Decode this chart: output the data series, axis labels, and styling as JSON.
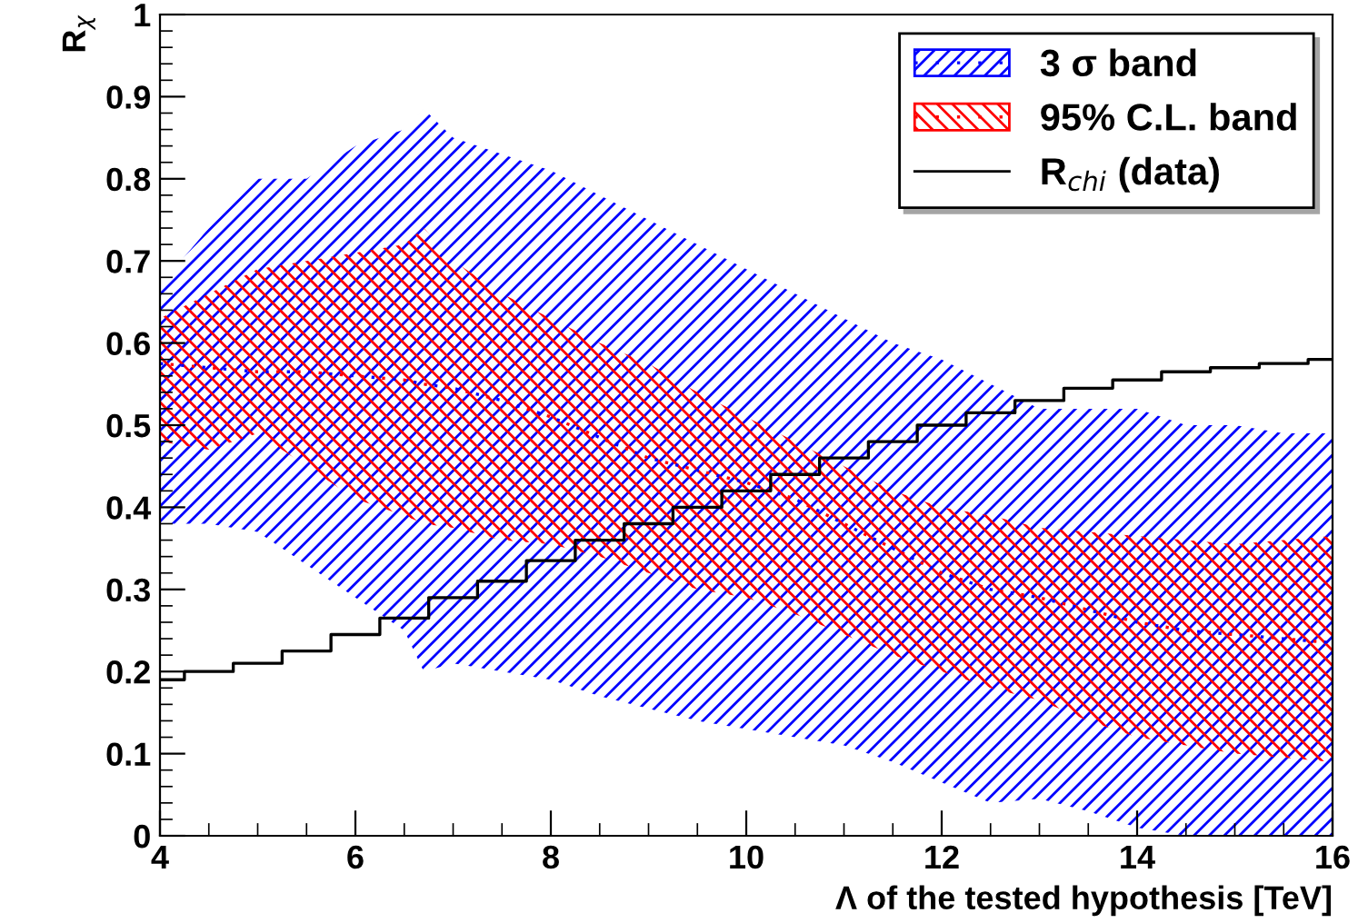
{
  "chart_data": {
    "type": "line",
    "xlabel": "Λ of the tested hypothesis [TeV]",
    "ylabel": "R$_{χ}$",
    "xlim": [
      4,
      16
    ],
    "ylim": [
      0,
      1
    ],
    "xticks": [
      4,
      6,
      8,
      10,
      12,
      14,
      16
    ],
    "yticks": [
      0,
      0.1,
      0.2,
      0.3,
      0.4,
      0.5,
      0.6,
      0.7,
      0.8,
      0.9,
      1
    ],
    "grid": false,
    "legend": "top right",
    "series": [
      {
        "name": "3 σ band",
        "line_style": "dotted",
        "color": "#0000ff",
        "x": [
          4,
          4.5,
          5,
          5.5,
          6,
          6.5,
          6.7,
          7,
          7.5,
          8,
          8.5,
          9,
          9.5,
          10,
          10.5,
          11,
          11.5,
          12,
          12.5,
          13,
          13.5,
          14,
          14.5,
          15,
          15.5,
          16
        ],
        "values": [
          0.575,
          0.57,
          0.565,
          0.565,
          0.56,
          0.555,
          0.55,
          0.545,
          0.53,
          0.51,
          0.485,
          0.46,
          0.445,
          0.43,
          0.41,
          0.38,
          0.35,
          0.32,
          0.3,
          0.29,
          0.275,
          0.26,
          0.25,
          0.245,
          0.24,
          0.235
        ],
        "lower": [
          0.38,
          0.38,
          0.37,
          0.33,
          0.29,
          0.25,
          0.2,
          0.21,
          0.2,
          0.19,
          0.17,
          0.155,
          0.14,
          0.13,
          0.12,
          0.11,
          0.09,
          0.065,
          0.04,
          0.045,
          0.03,
          0.01,
          0,
          0,
          0,
          0
        ],
        "upper": [
          0.67,
          0.74,
          0.8,
          0.8,
          0.84,
          0.86,
          0.885,
          0.85,
          0.83,
          0.81,
          0.78,
          0.75,
          0.72,
          0.69,
          0.66,
          0.63,
          0.6,
          0.58,
          0.55,
          0.52,
          0.52,
          0.52,
          0.5,
          0.5,
          0.49,
          0.49
        ]
      },
      {
        "name": "95% C.L. band",
        "line_style": "dotted",
        "color": "#ff0000",
        "x": [
          4,
          4.5,
          5,
          5.5,
          6,
          6.5,
          6.7,
          7,
          7.5,
          8,
          8.5,
          9,
          9.5,
          10,
          10.5,
          11,
          11.5,
          12,
          12.5,
          13,
          13.5,
          14,
          14.5,
          15,
          15.5,
          16
        ],
        "values": [
          0.575,
          0.57,
          0.565,
          0.565,
          0.56,
          0.555,
          0.55,
          0.545,
          0.53,
          0.51,
          0.485,
          0.46,
          0.445,
          0.43,
          0.41,
          0.38,
          0.35,
          0.32,
          0.3,
          0.29,
          0.275,
          0.26,
          0.25,
          0.245,
          0.24,
          0.235
        ],
        "lower": [
          0.48,
          0.47,
          0.49,
          0.45,
          0.41,
          0.39,
          0.38,
          0.375,
          0.36,
          0.355,
          0.34,
          0.32,
          0.3,
          0.29,
          0.27,
          0.245,
          0.22,
          0.2,
          0.18,
          0.165,
          0.14,
          0.12,
          0.11,
          0.1,
          0.095,
          0.09
        ],
        "upper": [
          0.63,
          0.66,
          0.69,
          0.7,
          0.71,
          0.72,
          0.74,
          0.7,
          0.66,
          0.63,
          0.6,
          0.575,
          0.54,
          0.51,
          0.48,
          0.45,
          0.42,
          0.4,
          0.39,
          0.375,
          0.37,
          0.365,
          0.36,
          0.355,
          0.36,
          0.365
        ]
      },
      {
        "name": "R$_{chi}$ (data)",
        "type": "step",
        "color": "#000000",
        "x": [
          4,
          4.5,
          5,
          5.5,
          6,
          6.5,
          7,
          7.5,
          8,
          8.5,
          9,
          9.5,
          10,
          10.5,
          11,
          11.5,
          12,
          12.5,
          13,
          13.5,
          14,
          14.5,
          15,
          15.5,
          16
        ],
        "values": [
          0.19,
          0.2,
          0.21,
          0.225,
          0.245,
          0.265,
          0.29,
          0.31,
          0.335,
          0.36,
          0.38,
          0.4,
          0.42,
          0.44,
          0.46,
          0.48,
          0.5,
          0.515,
          0.53,
          0.545,
          0.555,
          0.565,
          0.57,
          0.575,
          0.58
        ]
      }
    ]
  }
}
